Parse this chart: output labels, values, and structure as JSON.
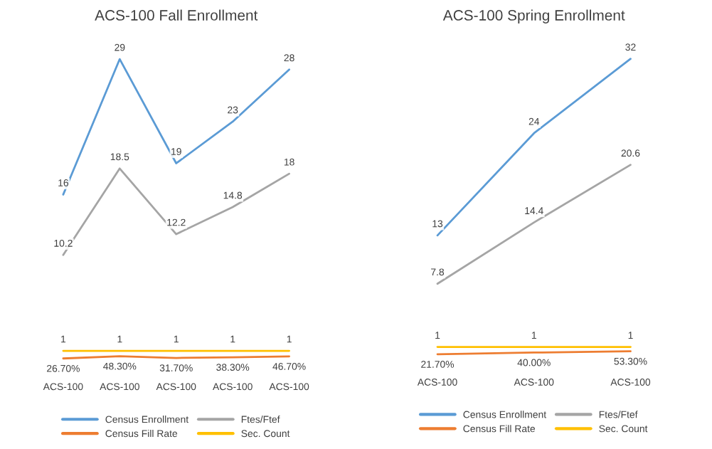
{
  "chart_data": [
    {
      "type": "line",
      "title": "ACS-100 Fall Enrollment",
      "categories": [
        "ACS-100",
        "ACS-100",
        "ACS-100",
        "ACS-100",
        "ACS-100"
      ],
      "tick_labels": "x",
      "grid": false,
      "legend": "bottom",
      "marker": "none",
      "line_style": "solid",
      "series": [
        {
          "name": "Census Enrollment",
          "color": "#5b9bd5",
          "values": [
            16,
            29,
            19,
            23,
            28
          ],
          "value_labels": [
            "16",
            "29",
            "19",
            "23",
            "28"
          ]
        },
        {
          "name": "Census Fill Rate",
          "color": "#ed7d31",
          "values": [
            0.267,
            0.483,
            0.317,
            0.383,
            0.467
          ],
          "value_labels": [
            "26.70%",
            "48.30%",
            "31.70%",
            "38.30%",
            "46.70%"
          ]
        },
        {
          "name": "Ftes/Ftef",
          "color": "#a5a5a5",
          "values": [
            10.2,
            18.5,
            12.2,
            14.8,
            18
          ],
          "value_labels": [
            "10.2",
            "18.5",
            "12.2",
            "14.8",
            "18"
          ]
        },
        {
          "name": "Sec. Count",
          "color": "#ffc000",
          "values": [
            1,
            1,
            1,
            1,
            1
          ],
          "value_labels": [
            "1",
            "1",
            "1",
            "1",
            "1"
          ]
        }
      ]
    },
    {
      "type": "line",
      "title": "ACS-100 Spring Enrollment",
      "categories": [
        "ACS-100",
        "ACS-100",
        "ACS-100"
      ],
      "tick_labels": "x",
      "grid": false,
      "legend": "bottom",
      "marker": "none",
      "line_style": "solid",
      "series": [
        {
          "name": "Census Enrollment",
          "color": "#5b9bd5",
          "values": [
            13,
            24,
            32
          ],
          "value_labels": [
            "13",
            "24",
            "32"
          ]
        },
        {
          "name": "Census Fill Rate",
          "color": "#ed7d31",
          "values": [
            0.217,
            0.4,
            0.533
          ],
          "value_labels": [
            "21.70%",
            "40.00%",
            "53.30%"
          ]
        },
        {
          "name": "Ftes/Ftef",
          "color": "#a5a5a5",
          "values": [
            7.8,
            14.4,
            20.6
          ],
          "value_labels": [
            "7.8",
            "14.4",
            "20.6"
          ]
        },
        {
          "name": "Sec. Count",
          "color": "#ffc000",
          "values": [
            1,
            1,
            1
          ],
          "value_labels": [
            "1",
            "1",
            "1"
          ]
        }
      ]
    }
  ]
}
